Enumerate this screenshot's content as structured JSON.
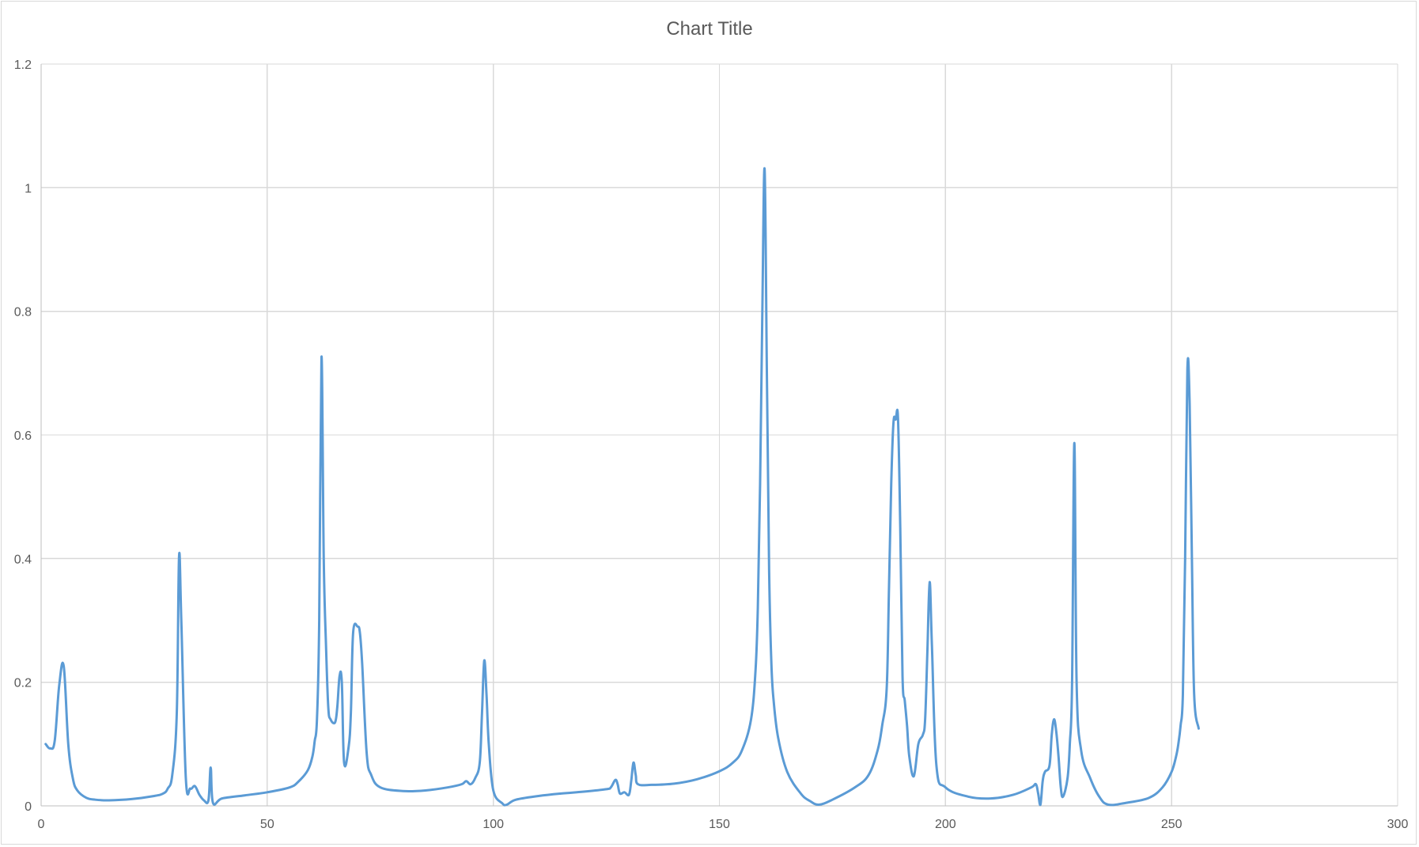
{
  "chart_data": {
    "type": "line",
    "title": "Chart Title",
    "xlabel": "",
    "ylabel": "",
    "xlim": [
      0,
      300
    ],
    "ylim": [
      0,
      1.2
    ],
    "x_ticks": [
      "0",
      "50",
      "100",
      "150",
      "200",
      "250",
      "300"
    ],
    "y_ticks": [
      "0",
      "0.2",
      "0.4",
      "0.6",
      "0.8",
      "1",
      "1.2"
    ],
    "grid": "major gridlines on both axes",
    "legend": "none",
    "series": [
      {
        "color": "#5b9bd5",
        "x": [
          1,
          2,
          3,
          4,
          5,
          6,
          7,
          8,
          10,
          12,
          15,
          20,
          25,
          27,
          28,
          29,
          30,
          30.5,
          31,
          32,
          33,
          34,
          35,
          36,
          37,
          37.5,
          38,
          40,
          45,
          50,
          55,
          57,
          59,
          60,
          60.5,
          61,
          61.5,
          62,
          62.5,
          63,
          63.5,
          64,
          65,
          65.5,
          66,
          66.5,
          67,
          68,
          68.5,
          69,
          70,
          70.5,
          71,
          72,
          73,
          75,
          80,
          85,
          90,
          93,
          94,
          95,
          96,
          97,
          97.5,
          98,
          98.5,
          99,
          100,
          102,
          103,
          105,
          110,
          115,
          120,
          125,
          126,
          127,
          127.5,
          128,
          129,
          130,
          130.5,
          131,
          131.5,
          132,
          135,
          140,
          145,
          150,
          153,
          155,
          157,
          158,
          158.5,
          159,
          159.5,
          160,
          160.5,
          161,
          161.5,
          162,
          163,
          165,
          168,
          170,
          172,
          175,
          180,
          183,
          185,
          186,
          187,
          187.5,
          188,
          188.5,
          189,
          189.5,
          190,
          190.5,
          191,
          191.5,
          192,
          193,
          194,
          195,
          195.5,
          196,
          196.5,
          197,
          198,
          200,
          205,
          210,
          215,
          219,
          220,
          220.5,
          221,
          221.5,
          222,
          223,
          223.5,
          224,
          224.5,
          225,
          225.5,
          226,
          227,
          227.5,
          228,
          228.5,
          229,
          230,
          232,
          234,
          236,
          240,
          245,
          248,
          250,
          251,
          251.5,
          252,
          252.5,
          253,
          253.5,
          254,
          254.5,
          255,
          256
        ],
        "values": [
          0.1,
          0.093,
          0.105,
          0.195,
          0.226,
          0.1,
          0.045,
          0.025,
          0.013,
          0.01,
          0.009,
          0.011,
          0.016,
          0.02,
          0.028,
          0.05,
          0.15,
          0.403,
          0.3,
          0.045,
          0.028,
          0.032,
          0.018,
          0.009,
          0.009,
          0.062,
          0.005,
          0.012,
          0.017,
          0.022,
          0.03,
          0.04,
          0.058,
          0.08,
          0.105,
          0.14,
          0.3,
          0.726,
          0.4,
          0.26,
          0.16,
          0.14,
          0.135,
          0.16,
          0.21,
          0.2,
          0.07,
          0.095,
          0.15,
          0.28,
          0.29,
          0.28,
          0.23,
          0.085,
          0.05,
          0.03,
          0.024,
          0.025,
          0.03,
          0.035,
          0.04,
          0.035,
          0.045,
          0.07,
          0.15,
          0.235,
          0.18,
          0.1,
          0.025,
          0.004,
          0.002,
          0.01,
          0.016,
          0.02,
          0.023,
          0.027,
          0.03,
          0.042,
          0.035,
          0.02,
          0.022,
          0.018,
          0.04,
          0.07,
          0.05,
          0.035,
          0.034,
          0.036,
          0.043,
          0.056,
          0.07,
          0.09,
          0.14,
          0.22,
          0.32,
          0.52,
          0.8,
          1.03,
          0.7,
          0.38,
          0.23,
          0.17,
          0.11,
          0.055,
          0.02,
          0.008,
          0.002,
          0.01,
          0.03,
          0.05,
          0.09,
          0.13,
          0.19,
          0.35,
          0.52,
          0.62,
          0.625,
          0.627,
          0.45,
          0.21,
          0.17,
          0.13,
          0.08,
          0.048,
          0.1,
          0.115,
          0.14,
          0.25,
          0.362,
          0.26,
          0.065,
          0.03,
          0.015,
          0.012,
          0.018,
          0.03,
          0.035,
          0.02,
          0.002,
          0.04,
          0.055,
          0.065,
          0.115,
          0.14,
          0.12,
          0.08,
          0.03,
          0.015,
          0.045,
          0.1,
          0.2,
          0.587,
          0.2,
          0.09,
          0.045,
          0.015,
          0.002,
          0.005,
          0.013,
          0.03,
          0.055,
          0.08,
          0.1,
          0.13,
          0.18,
          0.4,
          0.706,
          0.65,
          0.4,
          0.18,
          0.125
        ]
      }
    ]
  }
}
